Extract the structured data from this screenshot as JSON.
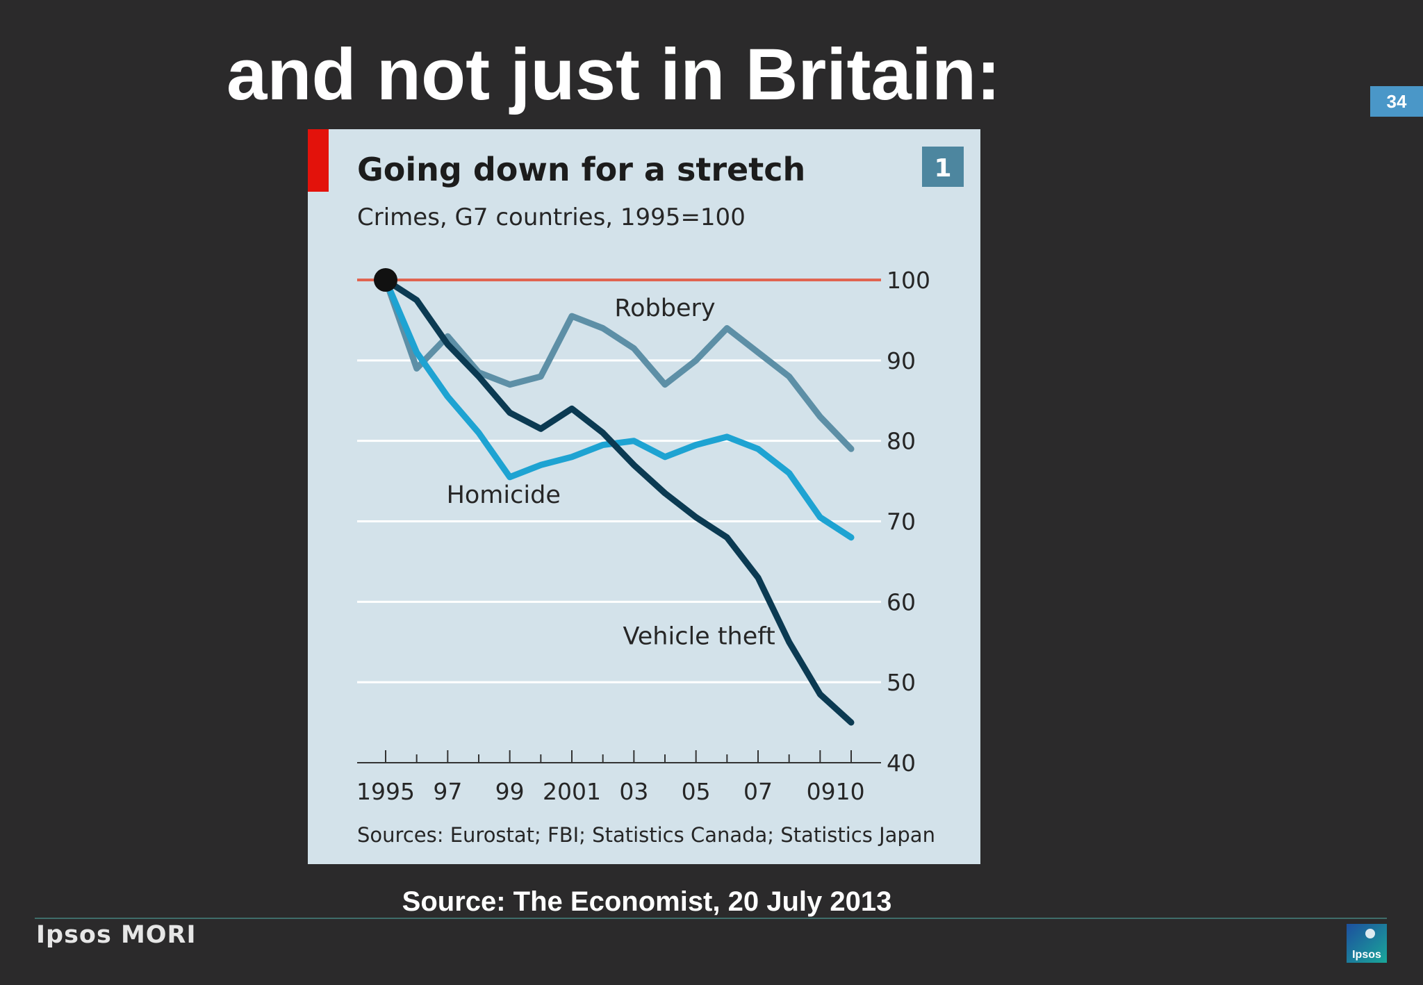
{
  "slide": {
    "title": "and not just in Britain:",
    "page_number": "34",
    "source": "Source: The Economist, 20 July 2013",
    "brand": "Ipsos MORI",
    "logo_text": "Ipsos"
  },
  "colors": {
    "background": "#2b2a2b",
    "panel": "#d3e2ea",
    "accent_red": "#e3120b",
    "baseline_red": "#e06450",
    "robbery": "#5d8fa6",
    "homicide": "#1ea3d2",
    "vehicle_theft": "#0b3a52",
    "page_badge": "#4a97c8"
  },
  "chart_data": {
    "type": "line",
    "title": "Going down for a stretch",
    "subtitle": "Crimes, G7 countries, 1995=100",
    "badge": "1",
    "source": "Sources: Eurostat; FBI; Statistics Canada; Statistics Japan",
    "x": [
      1995,
      1996,
      1997,
      1998,
      1999,
      2000,
      2001,
      2002,
      2003,
      2004,
      2005,
      2006,
      2007,
      2008,
      2009,
      2010
    ],
    "x_tick_labels": [
      {
        "year": 1995,
        "label": "1995"
      },
      {
        "year": 1997,
        "label": "97"
      },
      {
        "year": 1999,
        "label": "99"
      },
      {
        "year": 2001,
        "label": "2001"
      },
      {
        "year": 2003,
        "label": "03"
      },
      {
        "year": 2005,
        "label": "05"
      },
      {
        "year": 2007,
        "label": "07"
      },
      {
        "year": 2009.5,
        "label": "0910"
      }
    ],
    "ylim": [
      40,
      100
    ],
    "yticks": [
      40,
      50,
      60,
      70,
      80,
      90,
      100
    ],
    "grid": true,
    "baseline": 100,
    "series": [
      {
        "name": "Robbery",
        "color": "#5d8fa6",
        "label_at": {
          "x": 2004.0,
          "y": 95.5
        },
        "values": [
          100,
          89,
          93,
          88.5,
          87,
          88,
          95.5,
          94,
          91.5,
          87,
          90,
          94,
          91,
          88,
          83,
          79
        ]
      },
      {
        "name": "Homicide",
        "color": "#1ea3d2",
        "label_at": {
          "x": 1998.8,
          "y": 72.3
        },
        "values": [
          100,
          91,
          85.5,
          81,
          75.5,
          77,
          78,
          79.5,
          80,
          78,
          79.5,
          80.5,
          79,
          76,
          70.5,
          68
        ]
      },
      {
        "name": "Vehicle theft",
        "color": "#0b3a52",
        "label_at": {
          "x": 2005.1,
          "y": 54.7
        },
        "values": [
          100,
          97.5,
          92,
          88,
          83.5,
          81.5,
          84,
          81,
          77,
          73.5,
          70.5,
          68,
          63,
          55,
          48.5,
          45
        ]
      }
    ]
  }
}
